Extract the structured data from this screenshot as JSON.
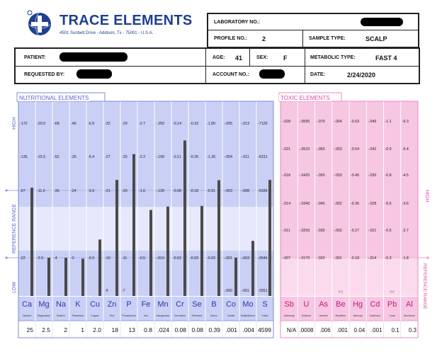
{
  "header": {
    "brand": "TRACE ELEMENTS",
    "address": "4501 Sunbelt Drive - Addison, Tx - 75001 - U.S.A.",
    "lab_no_label": "LABORATORY NO.:",
    "profile_no_label": "PROFILE NO.:",
    "profile_no": "2",
    "sample_type_label": "SAMPLE TYPE:",
    "sample_type": "SCALP",
    "patient_label": "PATIENT:",
    "age_label": "AGE:",
    "age": "41",
    "sex_label": "SEX:",
    "sex": "F",
    "metabolic_type_label": "METABOLIC TYPE:",
    "metabolic_type": "FAST 4",
    "requested_by_label": "REQUESTED BY:",
    "account_no_label": "ACCOUNT NO.:",
    "date_label": "DATE:",
    "date": "2/24/2020"
  },
  "labels": {
    "nutritional_title": "NUTRITIONAL  ELEMENTS",
    "toxic_title": "TOXIC  ELEMENTS",
    "high": "HIGH",
    "reference_range": "REFERENCE RANGE",
    "low": "LOW",
    "toxic_high": "HIGH",
    "toxic_reference_range": "REFERENCE RANGE"
  },
  "colors": {
    "nutritional_bg": "#c9cff5",
    "nutritional_ref": "#e6e8fb",
    "nutritional_border": "#7f88dc",
    "nutritional_title": "#5b64c8",
    "toxic_bg": "#f6c6e2",
    "toxic_border": "#e58cc2",
    "toxic_title": "#d94ba5",
    "bar": "#4b4b4b"
  },
  "chart_data": [
    {
      "type": "bar",
      "title": "NUTRITIONAL ELEMENTS",
      "categories": [
        "Ca",
        "Mg",
        "Na",
        "K",
        "Cu",
        "Zn",
        "P",
        "Fe",
        "Mn",
        "Cr",
        "Se",
        "B",
        "Co",
        "Mo",
        "S"
      ],
      "element_names": [
        "Calcium",
        "Magnesium",
        "Sodium",
        "Potassium",
        "Copper",
        "Zinc",
        "Phosphorus",
        "Iron",
        "Manganese",
        "Chromium",
        "Selenium",
        "Boron",
        "Cobalt",
        "Molybdenum",
        "Sulfur"
      ],
      "results": [
        "25",
        "2.5",
        "2",
        "1",
        "2.0",
        "18",
        "13",
        "0.8",
        ".024",
        "0.08",
        "0.08",
        "0.39",
        ".001",
        ".004",
        "4599"
      ],
      "row_labels": [
        [
          "172",
          "20.0",
          "68",
          "46",
          "6.9",
          "32",
          "29",
          "2.7",
          ".250",
          "0.14",
          "0.33",
          "1.80",
          ".005",
          ".013",
          "7126"
        ],
        [
          "135",
          "15.5",
          "52",
          "35",
          "5.4",
          "27",
          "25",
          "2.2",
          ".190",
          "0.11",
          "0.26",
          "1.36",
          ".004",
          ".011",
          "6231"
        ],
        [
          "97",
          "11.0",
          "36",
          "24",
          "3.9",
          "21",
          "20",
          "1.6",
          ".130",
          "0.08",
          "0.18",
          "0.91",
          ".003",
          ".008",
          "5336"
        ],
        [
          "22",
          "2.0",
          "4",
          "2",
          "0.9",
          "10",
          "11",
          "0.5",
          ".010",
          "0.02",
          "0.03",
          "0.02",
          ".001",
          ".003",
          "3546"
        ]
      ],
      "low_labels": [
        "",
        "",
        "",
        "",
        "",
        "5",
        "7",
        "",
        "",
        "",
        "",
        "",
        ".000",
        ".001",
        "2651"
      ],
      "levels": [
        3.08,
        2.0,
        2.0,
        1.95,
        2.27,
        3.31,
        4.07,
        2.71,
        2.76,
        4.48,
        2.77,
        3.3,
        2.0,
        2.25,
        3.31
      ]
    },
    {
      "type": "bar",
      "title": "TOXIC ELEMENTS",
      "categories": [
        "Sb",
        "U",
        "As",
        "Be",
        "Hg",
        "Cd",
        "Pb",
        "Al"
      ],
      "element_names": [
        "Antimony",
        "Uranium",
        "Arsenic",
        "Beryllium",
        "Mercury",
        "Cadmium",
        "Lead",
        "Aluminum"
      ],
      "results": [
        "N/A",
        ".0008",
        ".006",
        ".001",
        "0.04",
        ".001",
        "0.1",
        "0.3"
      ],
      "row_labels": [
        [
          ".028",
          ".0595",
          ".070",
          ".004",
          "0.63",
          ".049",
          "1.1",
          "6.3"
        ],
        [
          ".021",
          ".0510",
          ".060",
          ".003",
          "0.54",
          ".042",
          "0.9",
          "5.4"
        ],
        [
          ".018",
          ".0425",
          ".050",
          ".003",
          "0.45",
          ".035",
          "0.8",
          "4.5"
        ],
        [
          ".014",
          ".0340",
          ".040",
          ".002",
          "0.36",
          ".028",
          "0.6",
          "3.6"
        ],
        [
          ".011",
          ".0255",
          ".030",
          ".002",
          "0.27",
          ".021",
          "0.5",
          "2.7"
        ],
        [
          ".007",
          ".0170",
          ".020",
          ".001",
          "0.18",
          ".014",
          "0.3",
          "1.8"
        ]
      ],
      "low_marks": [
        "",
        "",
        "",
        "<<",
        "",
        "",
        "<<",
        ""
      ],
      "levels": [
        0,
        0,
        0,
        0,
        0,
        0,
        0,
        0
      ]
    }
  ]
}
